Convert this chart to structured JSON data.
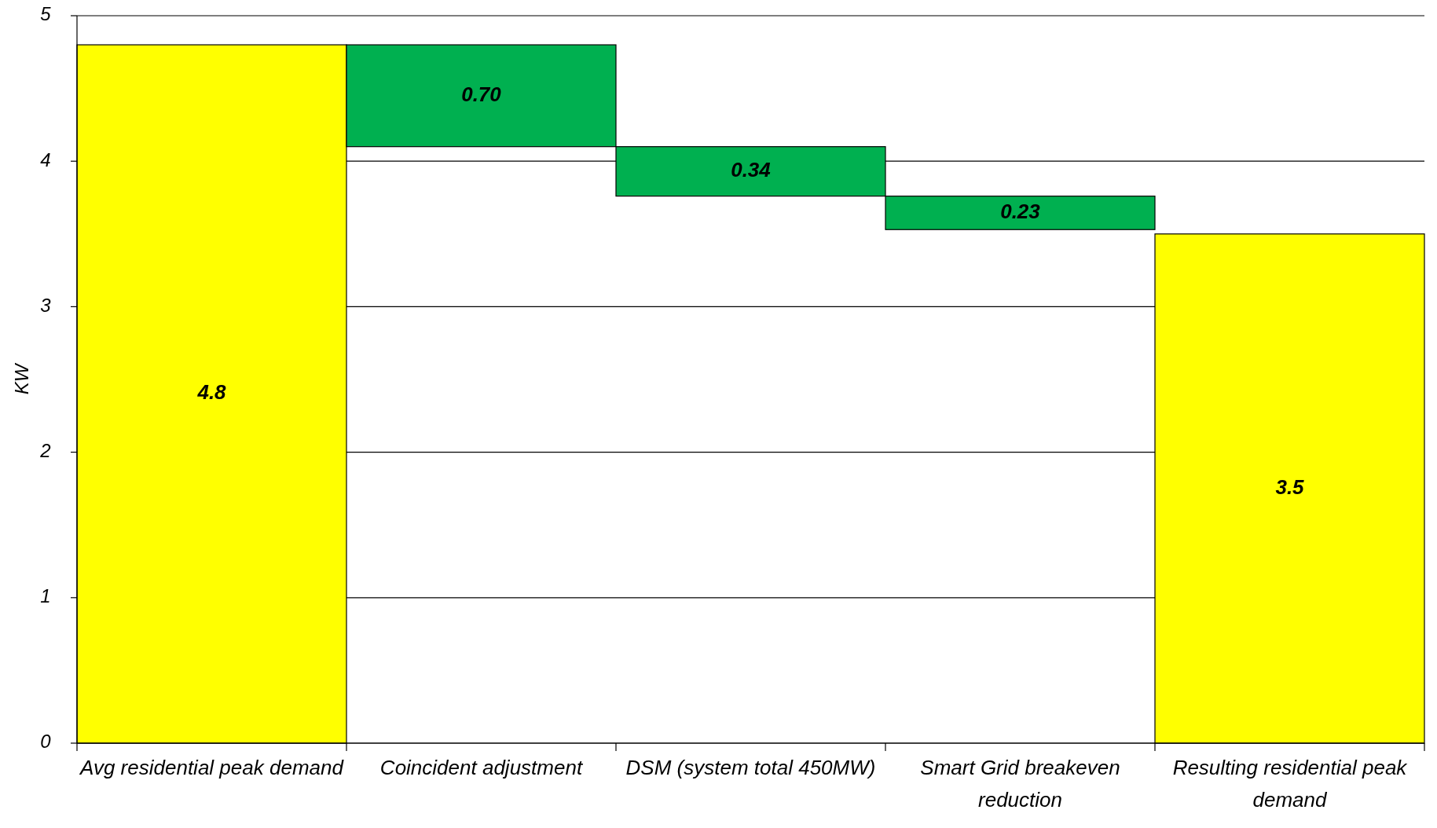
{
  "chart_data": {
    "type": "bar",
    "ylabel": "KW",
    "categories": [
      "Avg residential peak demand",
      "Coincident adjustment",
      "DSM (system total 450MW)",
      "Smart Grid breakeven reduction",
      "Resulting residential peak demand"
    ],
    "values": [
      4.8,
      0.7,
      0.34,
      0.23,
      3.5
    ],
    "base": [
      0,
      4.1,
      3.76,
      3.53,
      0
    ],
    "colors": [
      "#ffff00",
      "#00b050",
      "#00b050",
      "#00b050",
      "#ffff00"
    ],
    "value_labels": [
      "4.8",
      "0.70",
      "0.34",
      "0.23",
      "3.5"
    ],
    "ylim": [
      0,
      5
    ],
    "yticks": [
      0,
      1,
      2,
      3,
      4,
      5
    ],
    "grid": "y"
  }
}
